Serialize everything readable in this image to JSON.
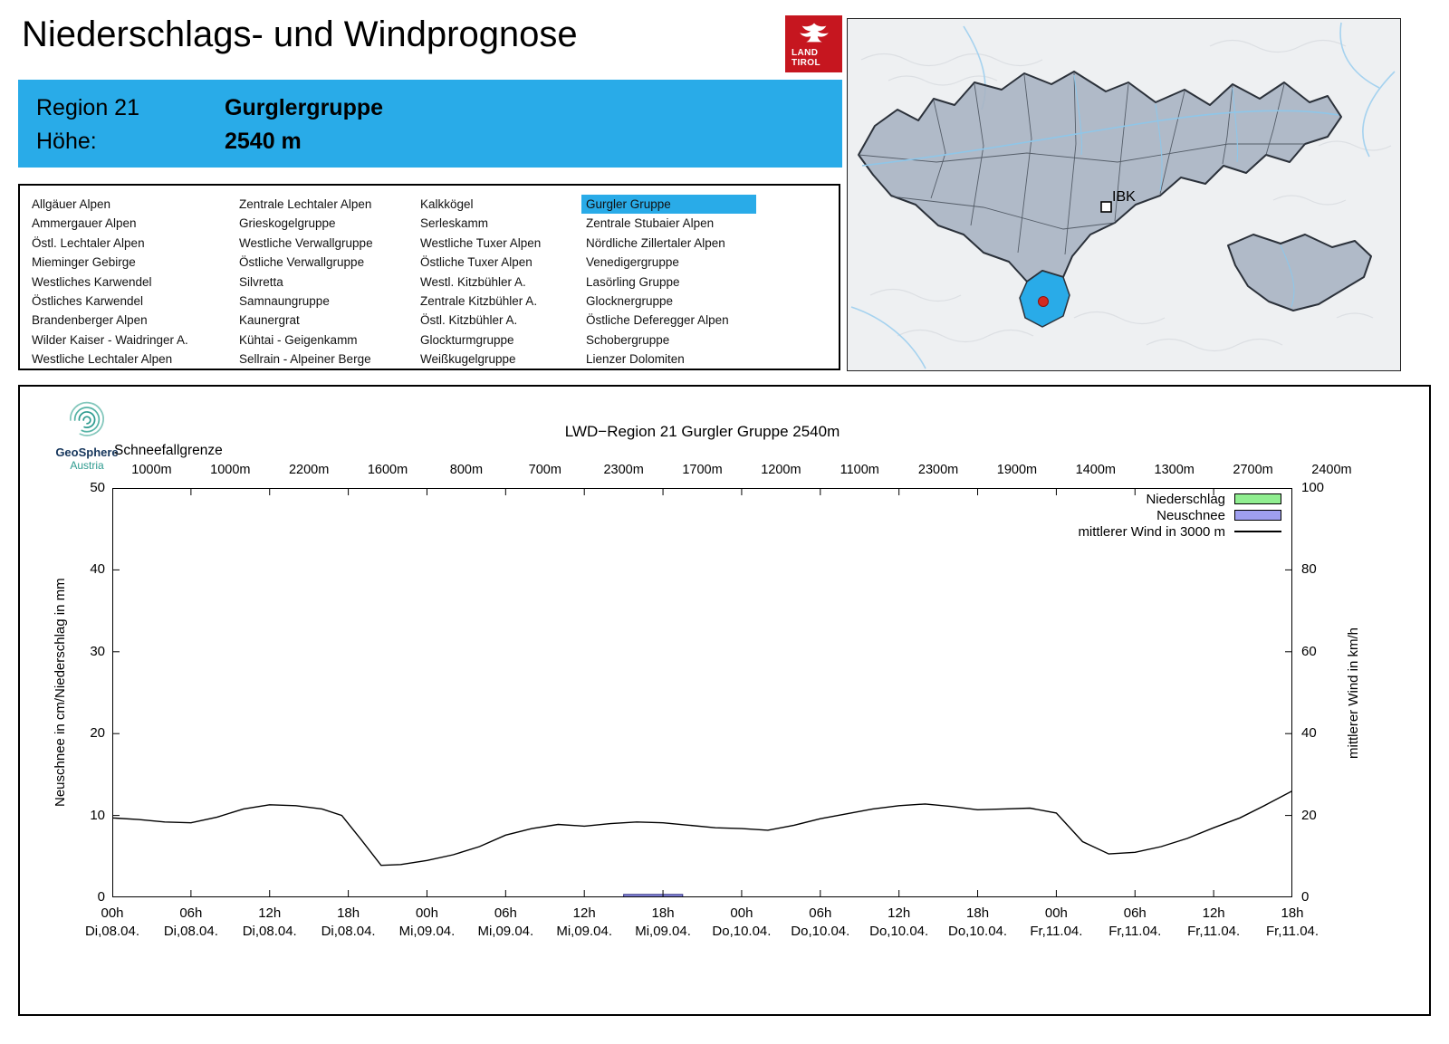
{
  "header": {
    "title": "Niederschlags- und Windprognose",
    "logo": {
      "line1": "LAND",
      "line2": "TIROL"
    }
  },
  "region_panel": {
    "region_label": "Region 21",
    "region_value": "Gurglergruppe",
    "altitude_label": "Höhe:",
    "altitude_value": "2540 m",
    "accent_color": "#29abe8"
  },
  "region_list": {
    "selected": "Gurgler Gruppe",
    "highlight_color": "#29abe8",
    "columns": [
      {
        "items": [
          "Allgäuer Alpen",
          "Ammergauer Alpen",
          "Östl. Lechtaler Alpen",
          "Mieminger Gebirge",
          "Westliches Karwendel",
          "Östliches Karwendel",
          "Brandenberger Alpen",
          "Wilder Kaiser - Waidringer A.",
          "Westliche Lechtaler Alpen"
        ]
      },
      {
        "items": [
          "Zentrale Lechtaler Alpen",
          "Grieskogelgruppe",
          "Westliche Verwallgruppe",
          "Östliche Verwallgruppe",
          "Silvretta",
          "Samnaungruppe",
          "Kaunergrat",
          "Kühtai - Geigenkamm",
          "Sellrain - Alpeiner Berge"
        ]
      },
      {
        "items": [
          "Kalkkögel",
          "Serleskamm",
          "Westliche Tuxer Alpen",
          "Östliche Tuxer Alpen",
          "Westl. Kitzbühler A.",
          "Zentrale Kitzbühler A.",
          "Östl. Kitzbühler A.",
          "Glockturmgruppe",
          "Weißkugelgruppe"
        ]
      },
      {
        "items": [
          "Gurgler Gruppe",
          "Zentrale Stubaier Alpen",
          "Nördliche Zillertaler Alpen",
          "Venedigergruppe",
          "Lasörling Gruppe",
          "Glocknergruppe",
          "Östliche Deferegger Alpen",
          "Schobergruppe",
          "Lienzer Dolomiten"
        ]
      }
    ]
  },
  "map": {
    "city_label": "IBK",
    "highlight_color": "#29abe8"
  },
  "chart": {
    "provider": {
      "name": "GeoSphere",
      "sub": "Austria"
    }
  },
  "chart_data": {
    "type": "mixed",
    "title": "LWD−Region 21 Gurgler Gruppe 2540m",
    "grid": false,
    "legend_position": "top-right",
    "snowline": {
      "label": "Schneefallgrenze",
      "values": [
        "1000m",
        "1000m",
        "2200m",
        "1600m",
        "800m",
        "700m",
        "2300m",
        "1700m",
        "1200m",
        "1100m",
        "2300m",
        "1900m",
        "1400m",
        "1300m",
        "2700m",
        "2400m"
      ]
    },
    "x_range_hours": [
      0,
      90
    ],
    "x_major_step_hours": 6,
    "x_tick_labels": [
      {
        "time": "00h",
        "date": "Di,08.04."
      },
      {
        "time": "06h",
        "date": "Di,08.04."
      },
      {
        "time": "12h",
        "date": "Di,08.04."
      },
      {
        "time": "18h",
        "date": "Di,08.04."
      },
      {
        "time": "00h",
        "date": "Mi,09.04."
      },
      {
        "time": "06h",
        "date": "Mi,09.04."
      },
      {
        "time": "12h",
        "date": "Mi,09.04."
      },
      {
        "time": "18h",
        "date": "Mi,09.04."
      },
      {
        "time": "00h",
        "date": "Do,10.04."
      },
      {
        "time": "06h",
        "date": "Do,10.04."
      },
      {
        "time": "12h",
        "date": "Do,10.04."
      },
      {
        "time": "18h",
        "date": "Do,10.04."
      },
      {
        "time": "00h",
        "date": "Fr,11.04."
      },
      {
        "time": "06h",
        "date": "Fr,11.04."
      },
      {
        "time": "12h",
        "date": "Fr,11.04."
      },
      {
        "time": "18h",
        "date": "Fr,11.04."
      }
    ],
    "left_axis": {
      "label": "Neuschnee in cm/Niederschlag in mm",
      "min": 0,
      "max": 50,
      "ticks": [
        0,
        10,
        20,
        30,
        40,
        50
      ]
    },
    "right_axis": {
      "label": "mittlerer Wind in km/h",
      "min": 0,
      "max": 100,
      "ticks": [
        0,
        20,
        40,
        60,
        80,
        100
      ]
    },
    "legend": [
      {
        "label": "Niederschlag",
        "swatch": "box",
        "fill": "#90ee90"
      },
      {
        "label": "Neuschnee",
        "swatch": "box",
        "fill": "#9f9ff0"
      },
      {
        "label": "mittlerer Wind in 3000 m",
        "swatch": "line",
        "fill": "#000000"
      }
    ],
    "series": [
      {
        "name": "Niederschlag",
        "type": "bar",
        "axis": "left",
        "unit": "mm",
        "fill": "#90ee90",
        "stroke": "#1c8c1c",
        "points": []
      },
      {
        "name": "Neuschnee",
        "type": "bar",
        "axis": "left",
        "unit": "cm",
        "fill": "#8888dd",
        "stroke": "#2a2a80",
        "points": [
          {
            "h_start": 39,
            "h_end": 43.5,
            "value": 0.35
          }
        ]
      },
      {
        "name": "mittlerer Wind in 3000 m",
        "type": "line",
        "axis": "right",
        "unit": "km/h",
        "color": "#000000",
        "points": [
          [
            0,
            19.4
          ],
          [
            2,
            19.0
          ],
          [
            4,
            18.4
          ],
          [
            6,
            18.2
          ],
          [
            8,
            19.6
          ],
          [
            10,
            21.6
          ],
          [
            12,
            22.6
          ],
          [
            14,
            22.4
          ],
          [
            16,
            21.6
          ],
          [
            17.5,
            20.0
          ],
          [
            19,
            14.0
          ],
          [
            20.5,
            7.8
          ],
          [
            22,
            8.0
          ],
          [
            24,
            9.0
          ],
          [
            26,
            10.4
          ],
          [
            28,
            12.4
          ],
          [
            30,
            15.2
          ],
          [
            32,
            16.8
          ],
          [
            34,
            17.8
          ],
          [
            36,
            17.4
          ],
          [
            38,
            18.0
          ],
          [
            40,
            18.4
          ],
          [
            42,
            18.2
          ],
          [
            44,
            17.6
          ],
          [
            46,
            17.0
          ],
          [
            48,
            16.8
          ],
          [
            50,
            16.4
          ],
          [
            52,
            17.6
          ],
          [
            54,
            19.2
          ],
          [
            56,
            20.4
          ],
          [
            58,
            21.6
          ],
          [
            60,
            22.4
          ],
          [
            62,
            22.8
          ],
          [
            64,
            22.2
          ],
          [
            66,
            21.4
          ],
          [
            68,
            21.6
          ],
          [
            70,
            21.8
          ],
          [
            72,
            20.6
          ],
          [
            74,
            13.6
          ],
          [
            76,
            10.6
          ],
          [
            78,
            11.0
          ],
          [
            80,
            12.4
          ],
          [
            82,
            14.4
          ],
          [
            84,
            17.0
          ],
          [
            86,
            19.4
          ],
          [
            88,
            22.6
          ],
          [
            90,
            26.0
          ]
        ]
      }
    ]
  }
}
